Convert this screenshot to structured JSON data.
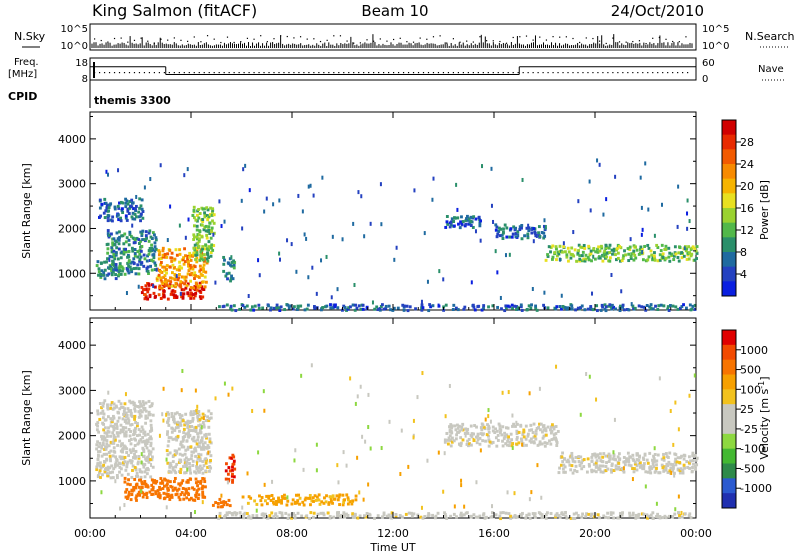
{
  "header": {
    "station": "King Salmon (fitACF)",
    "beam": "Beam 10",
    "date": "24/Oct/2010"
  },
  "noise_panel": {
    "left_label": "N.Sky",
    "right_label": "N.Search",
    "tick_top": "10^5",
    "tick_bottom": "10^0"
  },
  "freq_panel": {
    "left_label_line1": "Freq.",
    "left_label_line2": "[MHz]",
    "ticks_left": [
      "18",
      "8"
    ],
    "ticks_right": [
      "60",
      "0"
    ],
    "right_label": "Nave",
    "freq_steps": [
      {
        "start_hour": 0.0,
        "end_hour": 3.0,
        "mhz": 14
      },
      {
        "start_hour": 3.0,
        "end_hour": 17.0,
        "mhz": 10.5
      },
      {
        "start_hour": 17.0,
        "end_hour": 24.0,
        "mhz": 14
      }
    ]
  },
  "cpid_panel": {
    "label": "CPID",
    "program": "themis 3300"
  },
  "x_axis": {
    "label": "Time UT",
    "ticks": [
      "00:00",
      "04:00",
      "08:00",
      "12:00",
      "16:00",
      "20:00",
      "00:00"
    ]
  },
  "power_colorbar": {
    "label": "Power [dB]",
    "ticks": [
      "28",
      "24",
      "20",
      "16",
      "12",
      "8",
      "4"
    ],
    "colors": [
      "#0a1fe0",
      "#2441c0",
      "#1f6aa0",
      "#2a8f6a",
      "#52b84a",
      "#9ad230",
      "#e8e020",
      "#f6b400",
      "#f78a00",
      "#f25a00",
      "#e82a00",
      "#d00000"
    ]
  },
  "velocity_colorbar": {
    "label": "Velocity [m s^-1]",
    "ticks": [
      "1000",
      "500",
      "100",
      "25",
      "-25",
      "-100",
      "-500",
      "-1000"
    ],
    "colors": [
      "#2030b0",
      "#2b5ad0",
      "#2e8a4a",
      "#43b832",
      "#8dd840",
      "#c8c8c0",
      "#c8c8c0",
      "#f2c21e",
      "#f6a000",
      "#f77400",
      "#f24a00",
      "#e00000"
    ]
  },
  "chart_data": [
    {
      "type": "heatmap",
      "panel": "power",
      "xlabel": "Time UT",
      "ylabel": "Slant Range [km]",
      "xlim": [
        0,
        24
      ],
      "ylim": [
        180,
        4600
      ],
      "yticks": [
        "1000",
        "2000",
        "3000",
        "4000"
      ],
      "regions": [
        {
          "t0": 0.2,
          "t1": 1.2,
          "r0": 900,
          "r1": 1300,
          "value": 8
        },
        {
          "t0": 0.3,
          "t1": 2.0,
          "r0": 2200,
          "r1": 2700,
          "value": 6
        },
        {
          "t0": 0.6,
          "t1": 2.6,
          "r0": 1000,
          "r1": 2000,
          "value": 8
        },
        {
          "t0": 2.0,
          "t1": 4.5,
          "r0": 450,
          "r1": 800,
          "value": 28
        },
        {
          "t0": 2.6,
          "t1": 4.6,
          "r0": 700,
          "r1": 1600,
          "value": 20
        },
        {
          "t0": 4.0,
          "t1": 4.9,
          "r0": 1300,
          "r1": 2500,
          "value": 12
        },
        {
          "t0": 5.2,
          "t1": 5.7,
          "r0": 850,
          "r1": 1400,
          "value": 8
        },
        {
          "t0": 5.0,
          "t1": 24.0,
          "r0": 200,
          "r1": 350,
          "value": 6
        },
        {
          "t0": 14.0,
          "t1": 15.5,
          "r0": 2050,
          "r1": 2300,
          "value": 5
        },
        {
          "t0": 16.0,
          "t1": 18.0,
          "r0": 1800,
          "r1": 2100,
          "value": 6
        },
        {
          "t0": 18.0,
          "t1": 24.0,
          "r0": 1300,
          "r1": 1650,
          "value": 12
        }
      ]
    },
    {
      "type": "heatmap",
      "panel": "velocity",
      "xlabel": "Time UT",
      "ylabel": "Slant Range [km]",
      "xlim": [
        0,
        24
      ],
      "ylim": [
        180,
        4600
      ],
      "yticks": [
        "1000",
        "2000",
        "3000",
        "4000"
      ],
      "regions": [
        {
          "t0": 0.2,
          "t1": 2.5,
          "r0": 1100,
          "r1": 2800,
          "value": 0
        },
        {
          "t0": 1.3,
          "t1": 4.6,
          "r0": 600,
          "r1": 1100,
          "value": -300
        },
        {
          "t0": 3.0,
          "t1": 4.8,
          "r0": 1200,
          "r1": 2600,
          "value": 0
        },
        {
          "t0": 5.3,
          "t1": 5.7,
          "r0": 1000,
          "r1": 1650,
          "value": -700
        },
        {
          "t0": 4.8,
          "t1": 5.6,
          "r0": 450,
          "r1": 650,
          "value": -300
        },
        {
          "t0": 6.0,
          "t1": 10.5,
          "r0": 500,
          "r1": 720,
          "value": -120
        },
        {
          "t0": 5.0,
          "t1": 24.0,
          "r0": 200,
          "r1": 350,
          "value": 0
        },
        {
          "t0": 14.0,
          "t1": 18.5,
          "r0": 1800,
          "r1": 2300,
          "value": 0
        },
        {
          "t0": 18.5,
          "t1": 24.0,
          "r0": 1200,
          "r1": 1650,
          "value": 0
        }
      ]
    }
  ]
}
